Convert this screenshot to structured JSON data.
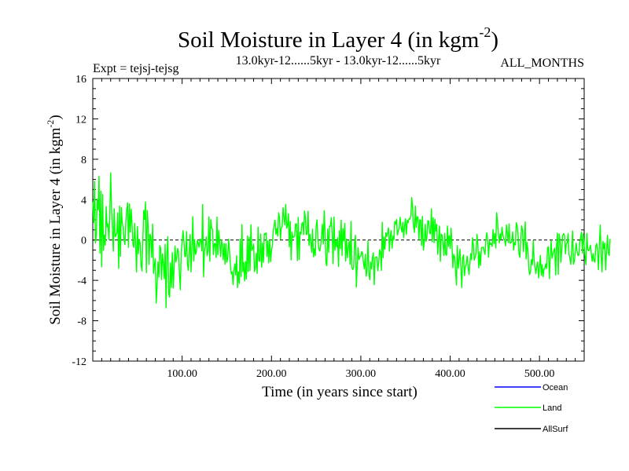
{
  "chart_data": {
    "type": "line",
    "title": "Soil Moisture in Layer 4 (in kgm",
    "title_sup": "-2",
    "title_close": ")",
    "subtitle_left": "Expt = tejsj-tejsg",
    "subtitle_center": "13.0kyr-12......5kyr - 13.0kyr-12......5kyr",
    "subtitle_right": "ALL_MONTHS",
    "xlabel": "Time (in years since start)",
    "ylabel": "Soil Moisture in Layer 4 (in kgm",
    "ylabel_sup": "-2",
    "ylabel_close": ")",
    "xlim": [
      0,
      550
    ],
    "ylim": [
      -12,
      16
    ],
    "x_ticks": [
      100,
      200,
      300,
      400,
      500
    ],
    "x_tick_labels": [
      "100.00",
      "200.00",
      "300.00",
      "400.00",
      "500.00"
    ],
    "y_ticks": [
      -12,
      -8,
      -4,
      0,
      4,
      8,
      12,
      16
    ],
    "y_tick_labels": [
      "-12",
      "-8",
      "-4",
      "0",
      "4",
      "8",
      "12",
      "16"
    ],
    "zero_line": true,
    "legend": [
      {
        "name": "Ocean",
        "color": "#0000ff"
      },
      {
        "name": "Land",
        "color": "#00ff00"
      },
      {
        "name": "AllSurf",
        "color": "#000000"
      }
    ],
    "series": [
      {
        "name": "Land",
        "color": "#00ff00",
        "x_start": 0,
        "x_step": 1,
        "values": [
          3.75,
          1.73,
          5.81,
          -0.3,
          0.5,
          4.04,
          3.0,
          6.32,
          -1.3,
          4.85,
          -2.66,
          4.52,
          -1.03,
          0.49,
          -0.51,
          3.31,
          1.3,
          1.59,
          0.05,
          2.15,
          6.66,
          3.12,
          1.06,
          -1.12,
          3.09,
          0.32,
          0.45,
          0.74,
          2.68,
          -2.81,
          3.37,
          -1.61,
          3.21,
          1.67,
          1.23,
          0.02,
          -0.46,
          1.78,
          2.98,
          3.69,
          -0.73,
          3.57,
          0.77,
          3.05,
          1.37,
          -0.48,
          -0.73,
          1.65,
          -0.49,
          -3.18,
          1.33,
          -1.37,
          0.06,
          -0.33,
          -2.43,
          -3.07,
          -0.14,
          2.93,
          2.04,
          3.76,
          -3.23,
          2.93,
          1.33,
          -2.41,
          0.57,
          0.33,
          -1.73,
          1.58,
          -3.3,
          -2.48,
          -1.86,
          -6.25,
          -4.47,
          -2.18,
          -3.67,
          -0.56,
          -0.82,
          -3.93,
          -1.38,
          -2.34,
          -3.84,
          -0.44,
          -6.72,
          -1.53,
          0.33,
          -5.34,
          -5.67,
          -2.26,
          -4.71,
          -1.25,
          -4.76,
          -2.82,
          -0.6,
          -2.18,
          -1.71,
          -0.84,
          -1.21,
          -3.29,
          -4.93,
          -1.12,
          -0.25,
          0.92,
          -0.1,
          -1.65,
          -1.6,
          0.82,
          -2.4,
          -3.01,
          -1.01,
          0.55,
          -3.16,
          -0.66,
          2.32,
          -2.09,
          0.03,
          -1.43,
          -1.14,
          -0.07,
          -0.28,
          -0.72,
          0.1,
          -0.04,
          -1.09,
          3.51,
          -3.66,
          -1.13,
          -0.56,
          0.3,
          -1.56,
          -1.11,
          2.3,
          -2.11,
          2.03,
          1.19,
          1.07,
          -1.45,
          -0.37,
          -0.38,
          -1.74,
          2.27,
          -1.47,
          0.95,
          -0.23,
          -1.64,
          0.02,
          -0.53,
          -1.96,
          -0.36,
          -2.4,
          -0.36,
          -2.21,
          -1.85,
          0.1,
          -1.05,
          -2.38,
          -3.36,
          -3.16,
          -4.43,
          -3.0,
          -2.36,
          -3.48,
          -1.56,
          -4.72,
          -3.15,
          -4.31,
          0.09,
          -3.63,
          1.53,
          -3.15,
          -2.23,
          -4.06,
          -2.13,
          -3.87,
          0.4,
          -3.13,
          0.27,
          -3.03,
          1.51,
          -1.03,
          -0.84,
          -0.42,
          -3.13,
          -2.73,
          -1.31,
          -3.32,
          1.27,
          -2.05,
          -2.12,
          0.59,
          -2.7,
          -0.3,
          -2.22,
          0.65,
          0.55,
          0.71,
          -1.62,
          -0.07,
          -2.26,
          0.04,
          -2.15,
          -1.05,
          -0.48,
          0.88,
          1.51,
          1.97,
          0.56,
          1.13,
          0.39,
          2.69,
          2.23,
          0.07,
          1.24,
          1.35,
          3.2,
          2.2,
          1.49,
          3.52,
          1.17,
          1.48,
          2.61,
          -0.69,
          1.84,
          -1.97,
          0.78,
          0.23,
          0.28,
          0.42,
          1.61,
          1.59,
          -2.04,
          2.24,
          -1.92,
          0.78,
          0.59,
          1.62,
          1.74,
          0.52,
          2.87,
          2.19,
          0.53,
          0.6,
          2.84,
          -0.54,
          0.56,
          -0.16,
          -1.22,
          1.07,
          -1.66,
          -0.87,
          -1.56,
          1.34,
          2.0,
          -0.05,
          -0.86,
          -1.1,
          -0.61,
          0.32,
          1.57,
          -0.38,
          2.91,
          0.84,
          -2.27,
          -2.55,
          1.09,
          -1.22,
          1.38,
          1.36,
          2.22,
          0.43,
          -2.34,
          2.29,
          -1.02,
          -0.07,
          -0.68,
          0.21,
          -2.63,
          0.91,
          -0.87,
          1.97,
          -1.54,
          1.14,
          -0.07,
          1.65,
          -2.1,
          0.1,
          -1.76,
          -0.77,
          -0.1,
          -2.41,
          1.85,
          -2.72,
          -2.94,
          -2.69,
          -0.27,
          0.47,
          -4.67,
          -2.56,
          -0.76,
          -1.94,
          -1.64,
          -1.6,
          -1.15,
          -1.31,
          -2.31,
          -2.86,
          -1.42,
          -3.59,
          -2.95,
          -0.09,
          -3.3,
          -3.94,
          -2.2,
          -2.85,
          -1.71,
          -1.26,
          -4.43,
          -1.74,
          -1.69,
          -1.7,
          -3.05,
          -2.23,
          -0.97,
          -1.24,
          -3.02,
          1.76,
          -1.76,
          0.29,
          -0.92,
          0.71,
          0.34,
          0.71,
          1.21,
          -1.11,
          0.35,
          0.93,
          -0.81,
          0.38,
          0.01,
          1.84,
          1.57,
          2.03,
          0.49,
          0.92,
          1.18,
          2.25,
          1.25,
          0.77,
          1.75,
          0.23,
          1.41,
          2.11,
          0.56,
          1.96,
          1.72,
          2.11,
          2.08,
          2.41,
          4.2,
          3.1,
          1.36,
          0.75,
          3.36,
          1.26,
          2.31,
          2.26,
          0.04,
          2.01,
          1.97,
          -0.56,
          2.34,
          -1.0,
          -0.26,
          1.55,
          -0.14,
          0.28,
          1.91,
          1.86,
          0.67,
          0.62,
          3.09,
          -0.18,
          2.22,
          -0.27,
          2.04,
          0.88,
          1.56,
          -1.42,
          0.07,
          1.38,
          -2.13,
          0.59,
          0.47,
          -0.43,
          -1.54,
          0.66,
          -1.41,
          -1.51,
          1.39,
          -0.64,
          0.43,
          -0.85,
          1.17,
          -0.35,
          -2.75,
          -1.43,
          -1.67,
          -2.95,
          -4.46,
          -0.56,
          -2.8,
          -1.92,
          -0.92,
          -2.73,
          -4.72,
          -1.76,
          -1.47,
          -3.52,
          -2.64,
          -2.42,
          -1.6,
          -2.48,
          -3.43,
          -2.44,
          -1.36,
          -1.95,
          0.21,
          -0.5,
          -2.0,
          -1.68,
          -1.35,
          0.56,
          -0.48,
          -2.76,
          -1.18,
          -2.52,
          -0.75,
          -0.73,
          -0.72,
          -1.09,
          -1.43,
          0.03,
          0.72,
          0.02,
          -1.71,
          -0.12,
          -0.45,
          -0.34,
          -0.63,
          1.03,
          -0.36,
          0.64,
          -0.78,
          2.7,
          1.8,
          0.65,
          -0.29,
          0.62,
          0.06,
          1.26,
          0.5,
          0.12,
          -0.02,
          -0.58,
          1.5,
          0.64,
          -0.26,
          1.6,
          -0.31,
          -0.3,
          -0.13,
          0.8,
          -1.0,
          -0.27,
          -0.48,
          1.71,
          1.41,
          0.51,
          -1.37,
          -1.73,
          0.19,
          1.4,
          0.97,
          -1.16,
          0.06,
          1.8,
          -1.88,
          -0.24,
          -0.99,
          -2.84,
          -3.43,
          -3.08,
          -1.93,
          -2.44,
          -0.07,
          -2.02,
          -2.8,
          -3.33,
          -2.51,
          -2.17,
          -3.76,
          -2.7,
          -1.53,
          -3.5,
          -2.46,
          -3.64,
          -2.87,
          -2.82,
          -2.35,
          -2.83,
          -0.79,
          -0.66,
          -3.82,
          -1.75,
          -0.07,
          -1.81,
          -1.39,
          -1.05,
          -0.82,
          -3.46,
          -0.62,
          0.68,
          -3.41,
          0.6,
          0.02,
          -2.21,
          -0.82,
          0.47,
          0.64,
          0.43,
          -1.38,
          -0.35,
          -0.29,
          0.64,
          -1.41,
          -1.79,
          -2.42,
          -0.9,
          0.9,
          -2.39,
          -2.11,
          -1.27,
          -0.32,
          -1.07,
          -1.53,
          -1.52,
          -0.32,
          0.28,
          0.79,
          -1.3,
          0.61,
          -0.51,
          -1.66,
          -2.45,
          0.66,
          -0.96,
          -1.07,
          -0.87,
          -0.51,
          -1.37,
          -2.11,
          -1.35,
          -2.05,
          -2.2,
          -0.6,
          -0.36,
          -1.08,
          -2.93,
          -0.36,
          1.48,
          -1.61,
          -3.17,
          -0.14,
          -0.87,
          -0.31,
          -2.97,
          -1.11,
          0.46,
          -1.31,
          -1.54,
          0.11
        ]
      },
      {
        "name": "Ocean",
        "color": "#0000ff",
        "values": []
      },
      {
        "name": "AllSurf",
        "color": "#000000",
        "values": []
      }
    ]
  }
}
